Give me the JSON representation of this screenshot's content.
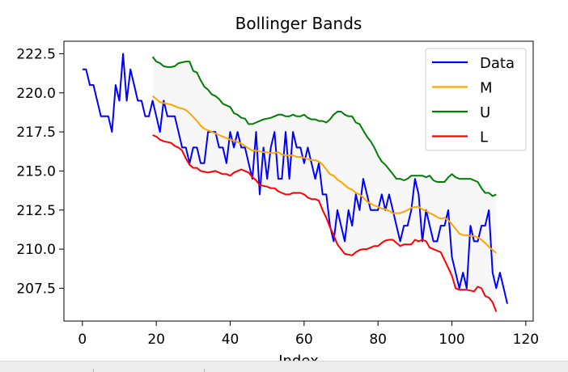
{
  "chart_data": {
    "type": "line",
    "title": "Bollinger Bands",
    "xlabel": "Index",
    "ylabel": "",
    "xlim": [
      -5,
      122
    ],
    "ylim": [
      205.4,
      223.3
    ],
    "xticks": [
      0,
      20,
      40,
      60,
      80,
      100,
      120
    ],
    "yticks": [
      207.5,
      210.0,
      212.5,
      215.0,
      217.5,
      220.0,
      222.5
    ],
    "xtick_labels": [
      "0",
      "20",
      "40",
      "60",
      "80",
      "100",
      "120"
    ],
    "ytick_labels": [
      "207.5",
      "210.0",
      "212.5",
      "215.0",
      "217.5",
      "220.0",
      "222.5"
    ],
    "legend_position": "top-right",
    "band_fill": "between U and L",
    "series": [
      {
        "name": "Data",
        "color": "#0000ff",
        "x_start": 0,
        "values": [
          221.5,
          221.5,
          220.5,
          220.5,
          219.5,
          218.5,
          218.5,
          218.5,
          217.5,
          220.5,
          219.5,
          222.5,
          219.5,
          221.5,
          220.5,
          219.5,
          219.5,
          218.5,
          218.5,
          219.5,
          218.5,
          217.5,
          219.5,
          218.5,
          218.5,
          218.5,
          217.5,
          216.5,
          216.5,
          215.5,
          216.5,
          216.5,
          215.5,
          215.5,
          217.5,
          217.5,
          217.5,
          216.5,
          216.5,
          215.5,
          217.5,
          216.5,
          217.5,
          216.5,
          216.5,
          215.5,
          214.5,
          217.5,
          213.5,
          216.5,
          214.5,
          216.5,
          217.5,
          214.5,
          214.5,
          217.5,
          214.5,
          217.5,
          216.5,
          216.5,
          215.5,
          216.5,
          215.5,
          214.5,
          215.5,
          213.5,
          213.5,
          211.5,
          210.5,
          212.5,
          211.5,
          210.5,
          212.5,
          211.5,
          213.5,
          212.5,
          214.5,
          213.5,
          212.5,
          212.5,
          212.5,
          213.5,
          212.5,
          213.5,
          212.5,
          211.5,
          210.5,
          211.5,
          211.5,
          212.5,
          214.5,
          213.5,
          210.5,
          212.5,
          211.5,
          210.5,
          210.5,
          211.5,
          211.5,
          212.5,
          209.5,
          208.5,
          207.5,
          208.5,
          207.5,
          211.5,
          210.5,
          210.5,
          211.5,
          211.5,
          212.5,
          208.5,
          207.5,
          208.5,
          207.5,
          206.5
        ]
      },
      {
        "name": "M",
        "color": "#ffa500",
        "x_start": 19,
        "values": [
          219.8,
          219.6,
          219.4,
          219.35,
          219.3,
          219.25,
          219.15,
          219.05,
          219.0,
          218.9,
          218.7,
          218.45,
          218.2,
          217.9,
          217.7,
          217.6,
          217.5,
          217.4,
          217.3,
          217.2,
          217.1,
          217.0,
          216.95,
          216.85,
          216.75,
          216.6,
          216.45,
          216.3,
          216.3,
          216.25,
          216.2,
          216.2,
          216.15,
          216.15,
          216.2,
          216.05,
          216.0,
          216.0,
          216.0,
          215.9,
          215.9,
          215.85,
          215.75,
          215.7,
          215.7,
          215.6,
          215.4,
          215.1,
          214.8,
          214.7,
          214.45,
          214.3,
          214.1,
          213.9,
          213.8,
          213.6,
          213.5,
          213.3,
          213.05,
          212.9,
          212.8,
          212.7,
          212.6,
          212.55,
          212.45,
          212.3,
          212.3,
          212.3,
          212.4,
          212.5,
          212.65,
          212.7,
          212.7,
          212.55,
          212.45,
          212.3,
          212.2,
          212.05,
          211.95,
          212.0,
          211.85,
          211.6,
          211.3,
          211.0,
          210.9,
          210.9,
          210.85,
          210.85,
          210.75,
          210.6,
          210.4,
          210.15,
          209.95,
          209.75
        ]
      },
      {
        "name": "U",
        "color": "#008000",
        "x_start": 19,
        "values": [
          222.3,
          222.0,
          221.9,
          221.7,
          221.65,
          221.65,
          221.7,
          221.9,
          221.95,
          222.0,
          222.0,
          221.4,
          221.3,
          220.8,
          220.4,
          220.2,
          219.9,
          219.8,
          219.6,
          219.3,
          219.2,
          219.1,
          218.7,
          218.6,
          218.4,
          218.35,
          218.0,
          218.0,
          218.1,
          218.2,
          218.3,
          218.35,
          218.4,
          218.5,
          218.6,
          218.6,
          218.5,
          218.5,
          218.6,
          218.5,
          218.5,
          218.6,
          218.4,
          218.3,
          218.3,
          218.2,
          218.2,
          218.1,
          218.3,
          218.6,
          218.8,
          218.8,
          218.6,
          218.5,
          218.5,
          218.1,
          218.0,
          217.6,
          217.2,
          216.9,
          216.5,
          216.0,
          215.6,
          215.4,
          215.1,
          214.8,
          214.5,
          214.5,
          214.4,
          214.5,
          214.7,
          214.7,
          214.7,
          214.7,
          214.6,
          214.7,
          214.4,
          214.3,
          214.3,
          214.3,
          214.6,
          214.8,
          214.6,
          214.5,
          214.5,
          214.5,
          214.5,
          214.4,
          214.3,
          213.9,
          213.6,
          213.6,
          213.4,
          213.5
        ]
      },
      {
        "name": "L",
        "color": "#ff0000",
        "x_start": 19,
        "values": [
          217.3,
          217.2,
          217.0,
          216.9,
          216.85,
          216.8,
          216.6,
          216.5,
          216.3,
          215.8,
          215.4,
          215.2,
          215.2,
          215.0,
          214.95,
          214.9,
          214.95,
          215.0,
          214.9,
          214.8,
          214.8,
          214.7,
          214.9,
          215.0,
          215.1,
          215.0,
          214.9,
          214.6,
          214.4,
          214.1,
          214.05,
          214.0,
          213.9,
          213.9,
          213.7,
          213.6,
          213.5,
          213.5,
          213.6,
          213.6,
          213.6,
          213.5,
          213.3,
          213.2,
          213.2,
          213.1,
          212.5,
          212.0,
          211.4,
          210.9,
          210.3,
          210.0,
          209.7,
          209.65,
          209.6,
          209.8,
          209.95,
          210.0,
          210.0,
          210.1,
          210.2,
          210.2,
          210.4,
          210.55,
          210.6,
          210.6,
          210.4,
          210.2,
          210.3,
          210.3,
          210.3,
          210.6,
          210.5,
          210.6,
          210.5,
          210.1,
          210.0,
          209.9,
          209.8,
          209.3,
          208.8,
          208.3,
          207.5,
          207.4,
          207.4,
          207.4,
          207.35,
          207.3,
          207.6,
          207.5,
          207.0,
          206.9,
          206.6,
          206.0
        ]
      }
    ]
  }
}
